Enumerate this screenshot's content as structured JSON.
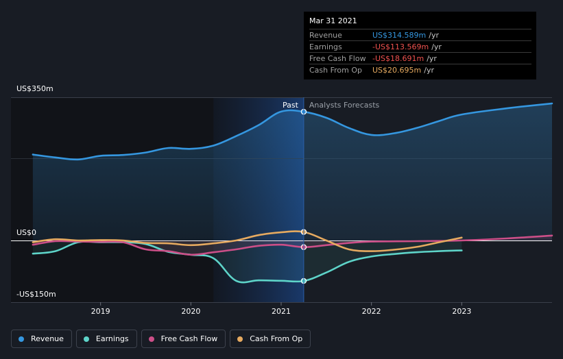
{
  "colors": {
    "revenue": "#3597e0",
    "earnings": "#5ed4c9",
    "free_cash_flow": "#cc4f88",
    "cash_from_op": "#e6aa60",
    "negative": "#f0524f"
  },
  "chart_data": {
    "type": "line",
    "ylim": [
      -150,
      350
    ],
    "y_ticks": [
      {
        "value": 350,
        "label": "US$350m"
      },
      {
        "value": 0,
        "label": "US$0"
      },
      {
        "value": -150,
        "label": "-US$150m"
      }
    ],
    "x_range": [
      2018.0,
      2024.0
    ],
    "x_ticks": [
      {
        "value": 2019,
        "label": "2019"
      },
      {
        "value": 2020,
        "label": "2020"
      },
      {
        "value": 2021,
        "label": "2021"
      },
      {
        "value": 2022,
        "label": "2022"
      },
      {
        "value": 2023,
        "label": "2023"
      }
    ],
    "past_label": "Past",
    "forecast_label": "Analysts Forecasts",
    "divider_x": 2021.25,
    "highlight_start_x": 2020.25,
    "series": [
      {
        "key": "revenue",
        "name": "Revenue",
        "points": [
          [
            2018.25,
            210
          ],
          [
            2018.5,
            203
          ],
          [
            2018.75,
            198
          ],
          [
            2019.0,
            207
          ],
          [
            2019.25,
            209
          ],
          [
            2019.5,
            215
          ],
          [
            2019.75,
            226
          ],
          [
            2020.0,
            224
          ],
          [
            2020.25,
            232
          ],
          [
            2020.5,
            255
          ],
          [
            2020.75,
            282
          ],
          [
            2021.0,
            315
          ],
          [
            2021.25,
            314.6
          ],
          [
            2021.5,
            300
          ],
          [
            2021.75,
            275
          ],
          [
            2022.0,
            258
          ],
          [
            2022.25,
            262
          ],
          [
            2022.5,
            275
          ],
          [
            2022.75,
            292
          ],
          [
            2023.0,
            308
          ],
          [
            2023.5,
            323
          ],
          [
            2024.0,
            335
          ]
        ]
      },
      {
        "key": "earnings",
        "name": "Earnings",
        "points": [
          [
            2018.25,
            -37
          ],
          [
            2018.5,
            -30
          ],
          [
            2018.75,
            -5
          ],
          [
            2019.0,
            -5
          ],
          [
            2019.25,
            -5
          ],
          [
            2019.5,
            -10
          ],
          [
            2019.75,
            -32
          ],
          [
            2020.0,
            -40
          ],
          [
            2020.25,
            -50
          ],
          [
            2020.5,
            -113
          ],
          [
            2020.75,
            -112
          ],
          [
            2021.0,
            -113
          ],
          [
            2021.25,
            -113.6
          ],
          [
            2021.5,
            -90
          ],
          [
            2021.75,
            -60
          ],
          [
            2022.0,
            -45
          ],
          [
            2022.25,
            -38
          ],
          [
            2022.5,
            -33
          ],
          [
            2022.75,
            -30
          ],
          [
            2023.0,
            -28
          ]
        ]
      },
      {
        "key": "free_cash_flow",
        "name": "Free Cash Flow",
        "points": [
          [
            2018.25,
            -12
          ],
          [
            2018.5,
            -2
          ],
          [
            2018.75,
            -3
          ],
          [
            2019.0,
            -4
          ],
          [
            2019.25,
            -5
          ],
          [
            2019.5,
            -25
          ],
          [
            2019.75,
            -30
          ],
          [
            2020.0,
            -40
          ],
          [
            2020.25,
            -33
          ],
          [
            2020.5,
            -25
          ],
          [
            2020.75,
            -15
          ],
          [
            2021.0,
            -12
          ],
          [
            2021.25,
            -18.7
          ],
          [
            2021.5,
            -13
          ],
          [
            2021.75,
            -7
          ],
          [
            2022.0,
            -3
          ],
          [
            2022.5,
            -2
          ],
          [
            2023.0,
            0
          ],
          [
            2023.5,
            5
          ],
          [
            2024.0,
            12
          ]
        ]
      },
      {
        "key": "cash_from_op",
        "name": "Cash From Op",
        "points": [
          [
            2018.25,
            -5
          ],
          [
            2018.5,
            3
          ],
          [
            2018.75,
            0
          ],
          [
            2019.0,
            1
          ],
          [
            2019.25,
            0
          ],
          [
            2019.5,
            -7
          ],
          [
            2019.75,
            -8
          ],
          [
            2020.0,
            -13
          ],
          [
            2020.25,
            -8
          ],
          [
            2020.5,
            0
          ],
          [
            2020.75,
            13
          ],
          [
            2021.0,
            20
          ],
          [
            2021.25,
            20.7
          ],
          [
            2021.5,
            0
          ],
          [
            2021.75,
            -25
          ],
          [
            2022.0,
            -30
          ],
          [
            2022.25,
            -26
          ],
          [
            2022.5,
            -18
          ],
          [
            2022.75,
            -5
          ],
          [
            2023.0,
            7
          ]
        ]
      }
    ]
  },
  "tooltip": {
    "date": "Mar 31 2021",
    "rows": [
      {
        "label": "Revenue",
        "value": "US$314.589m",
        "unit": "/yr",
        "color": "#3597e0"
      },
      {
        "label": "Earnings",
        "value": "-US$113.569m",
        "unit": "/yr",
        "color": "#f0524f"
      },
      {
        "label": "Free Cash Flow",
        "value": "-US$18.691m",
        "unit": "/yr",
        "color": "#f0524f"
      },
      {
        "label": "Cash From Op",
        "value": "US$20.695m",
        "unit": "/yr",
        "color": "#e6aa60"
      }
    ]
  },
  "legend": [
    {
      "label": "Revenue",
      "color": "#3597e0"
    },
    {
      "label": "Earnings",
      "color": "#5ed4c9"
    },
    {
      "label": "Free Cash Flow",
      "color": "#cc4f88"
    },
    {
      "label": "Cash From Op",
      "color": "#e6aa60"
    }
  ]
}
